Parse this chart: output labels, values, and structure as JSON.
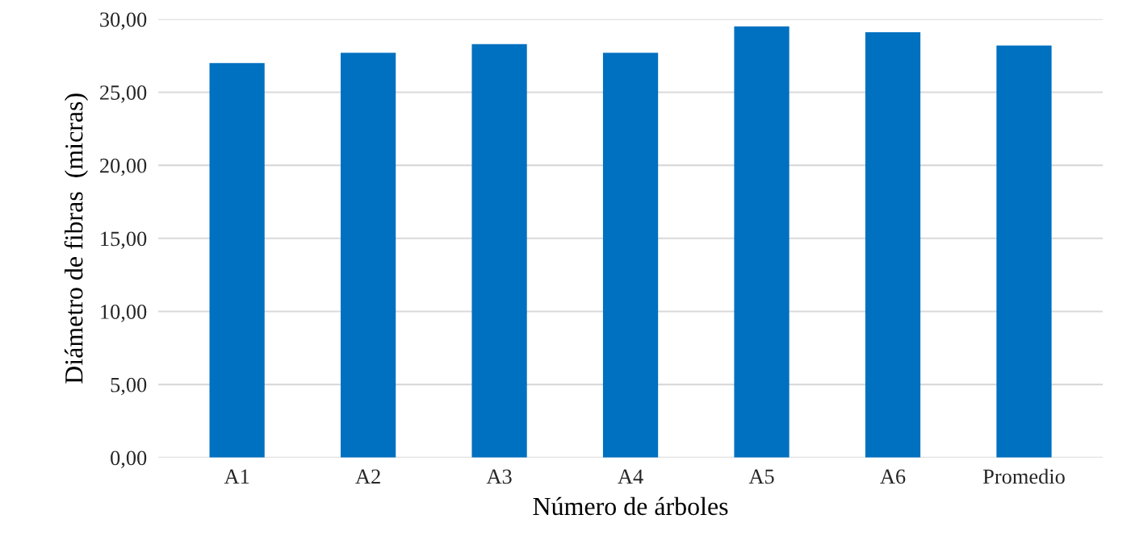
{
  "chart_data": {
    "type": "bar",
    "xlabel": "Número de árboles",
    "ylabel": "Diámetro de fibras  (micras)",
    "categories": [
      "A1",
      "A2",
      "A3",
      "A4",
      "A5",
      "A6",
      "Promedio"
    ],
    "values": [
      27.0,
      27.7,
      28.3,
      27.7,
      29.5,
      29.1,
      28.2
    ],
    "color": "#0070c0",
    "ylim": [
      0,
      30
    ],
    "yticks": [
      {
        "value": 0,
        "label": "0,00"
      },
      {
        "value": 5,
        "label": "5,00"
      },
      {
        "value": 10,
        "label": "10,00"
      },
      {
        "value": 15,
        "label": "15,00"
      },
      {
        "value": 20,
        "label": "20,00"
      },
      {
        "value": 25,
        "label": "25,00"
      },
      {
        "value": 30,
        "label": "30,00"
      }
    ],
    "grid": "y",
    "legend": false
  }
}
